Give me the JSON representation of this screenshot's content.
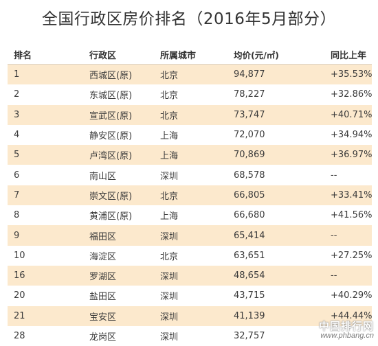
{
  "title": "全国行政区房价排名（2016年5月部分）",
  "chart_data": {
    "type": "table",
    "title": "全国行政区房价排名（2016年5月部分）",
    "columns": [
      "排名",
      "行政区",
      "所属城市",
      "均价(元/㎡)",
      "同比上年"
    ],
    "rows": [
      {
        "rank": "1",
        "district": "西城区(原)",
        "city": "北京",
        "price": "94,877",
        "yoy": "+35.53%",
        "highlight": true
      },
      {
        "rank": "2",
        "district": "东城区(原)",
        "city": "北京",
        "price": "78,227",
        "yoy": "+32.86%",
        "highlight": false
      },
      {
        "rank": "3",
        "district": "宣武区(原)",
        "city": "北京",
        "price": "73,747",
        "yoy": "+40.71%",
        "highlight": true
      },
      {
        "rank": "4",
        "district": "静安区(原)",
        "city": "上海",
        "price": "72,070",
        "yoy": "+34.94%",
        "highlight": false
      },
      {
        "rank": "5",
        "district": "卢湾区(原)",
        "city": "上海",
        "price": "70,869",
        "yoy": "+36.97%",
        "highlight": true
      },
      {
        "rank": "6",
        "district": "南山区",
        "city": "深圳",
        "price": "68,578",
        "yoy": "--",
        "highlight": false
      },
      {
        "rank": "7",
        "district": "崇文区(原)",
        "city": "北京",
        "price": "66,805",
        "yoy": "+33.41%",
        "highlight": true
      },
      {
        "rank": "8",
        "district": "黄浦区(原)",
        "city": "上海",
        "price": "66,680",
        "yoy": "+41.56%",
        "highlight": false
      },
      {
        "rank": "9",
        "district": "福田区",
        "city": "深圳",
        "price": "65,414",
        "yoy": "--",
        "highlight": true
      },
      {
        "rank": "10",
        "district": "海淀区",
        "city": "北京",
        "price": "63,651",
        "yoy": "+27.25%",
        "highlight": false
      },
      {
        "rank": "16",
        "district": "罗湖区",
        "city": "深圳",
        "price": "48,654",
        "yoy": "--",
        "highlight": true
      },
      {
        "rank": "20",
        "district": "盐田区",
        "city": "深圳",
        "price": "43,715",
        "yoy": "+40.29%",
        "highlight": false
      },
      {
        "rank": "21",
        "district": "宝安区",
        "city": "深圳",
        "price": "41,139",
        "yoy": "+44.44%",
        "highlight": true
      },
      {
        "rank": "28",
        "district": "龙岗区",
        "city": "深圳",
        "price": "32,757",
        "yoy": "",
        "highlight": false
      }
    ],
    "highlight_color": "#fce9cd"
  },
  "watermark": {
    "text": "中国排行网",
    "url": "www.phbang.cn"
  }
}
